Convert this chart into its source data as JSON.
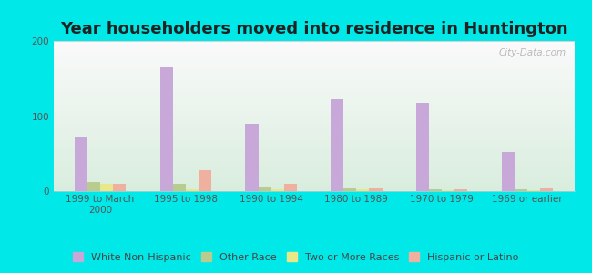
{
  "title": "Year householders moved into residence in Huntington",
  "categories": [
    "1999 to March\n2000",
    "1995 to 1998",
    "1990 to 1994",
    "1980 to 1989",
    "1970 to 1979",
    "1969 or earlier"
  ],
  "series": {
    "White Non-Hispanic": [
      72,
      165,
      90,
      122,
      118,
      52
    ],
    "Other Race": [
      12,
      10,
      5,
      4,
      2,
      2
    ],
    "Two or More Races": [
      10,
      2,
      3,
      3,
      1,
      1
    ],
    "Hispanic or Latino": [
      10,
      28,
      10,
      4,
      2,
      4
    ]
  },
  "colors": {
    "White Non-Hispanic": "#c8a8d8",
    "Other Race": "#b8cc90",
    "Two or More Races": "#e8e888",
    "Hispanic or Latino": "#f0b0a0"
  },
  "bar_width": 0.15,
  "ylim": [
    0,
    200
  ],
  "yticks": [
    0,
    100,
    200
  ],
  "background_color": "#00e8e8",
  "watermark": "City-Data.com",
  "title_fontsize": 13,
  "tick_fontsize": 7.5,
  "legend_fontsize": 8
}
